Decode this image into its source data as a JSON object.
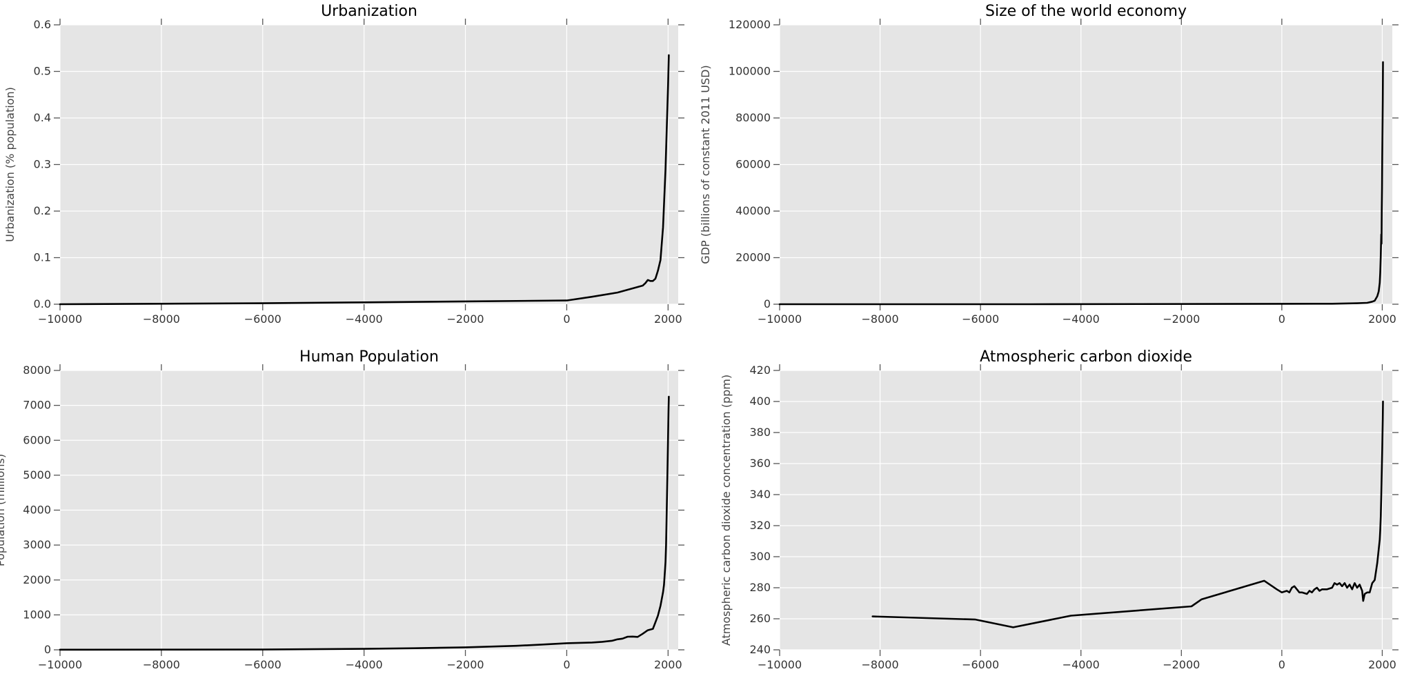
{
  "chart_data": [
    {
      "type": "line",
      "title": "Urbanization",
      "xlabel": "",
      "ylabel": "Urbanization (% population)",
      "xlim": [
        -10000,
        2200
      ],
      "ylim": [
        0,
        0.6
      ],
      "xticks": [
        -10000,
        -8000,
        -6000,
        -4000,
        -2000,
        0,
        2000
      ],
      "xtick_labels": [
        "−10000",
        "−8000",
        "−6000",
        "−4000",
        "−2000",
        "0",
        "2000"
      ],
      "yticks": [
        0,
        0.1,
        0.2,
        0.3,
        0.4,
        0.5,
        0.6
      ],
      "ytick_labels": [
        "0.0",
        "0.1",
        "0.2",
        "0.3",
        "0.4",
        "0.5",
        "0.6"
      ],
      "grid": true,
      "series": [
        {
          "x": [
            -10000,
            -8000,
            -6000,
            -4000,
            -2000,
            0,
            500,
            1000,
            1500,
            1550,
            1600,
            1650,
            1700,
            1750,
            1800,
            1850,
            1900,
            1950,
            2000,
            2015
          ],
          "y": [
            0,
            0.001,
            0.002,
            0.004,
            0.006,
            0.008,
            0.016,
            0.025,
            0.04,
            0.045,
            0.052,
            0.05,
            0.05,
            0.055,
            0.072,
            0.095,
            0.165,
            0.29,
            0.47,
            0.535
          ]
        }
      ]
    },
    {
      "type": "line",
      "title": "Size of the world economy",
      "xlabel": "",
      "ylabel": "GDP (billions of constant 2011 USD)",
      "xlim": [
        -10000,
        2200
      ],
      "ylim": [
        0,
        120000
      ],
      "xticks": [
        -10000,
        -8000,
        -6000,
        -4000,
        -2000,
        0,
        2000
      ],
      "xtick_labels": [
        "−10000",
        "−8000",
        "−6000",
        "−4000",
        "−2000",
        "0",
        "2000"
      ],
      "yticks": [
        0,
        20000,
        40000,
        60000,
        80000,
        100000,
        120000
      ],
      "ytick_labels": [
        "0",
        "20000",
        "40000",
        "60000",
        "80000",
        "100000",
        "120000"
      ],
      "grid": true,
      "series": [
        {
          "x": [
            -10000,
            -5000,
            0,
            1000,
            1500,
            1700,
            1800,
            1850,
            1900,
            1930,
            1950,
            1960,
            1970,
            1975,
            1980,
            1985,
            1990,
            1995,
            2000,
            2005,
            2010,
            2015
          ],
          "y": [
            2,
            10,
            180,
            210,
            420,
            600,
            1100,
            1500,
            3400,
            5500,
            9200,
            13500,
            21000,
            25000,
            30000,
            26000,
            40000,
            50000,
            63000,
            75000,
            88000,
            104000
          ]
        }
      ]
    },
    {
      "type": "line",
      "title": "Human Population",
      "xlabel": "",
      "ylabel": "Population (millions)",
      "xlim": [
        -10000,
        2200
      ],
      "ylim": [
        0,
        8000
      ],
      "xticks": [
        -10000,
        -8000,
        -6000,
        -4000,
        -2000,
        0,
        2000
      ],
      "xtick_labels": [
        "−10000",
        "−8000",
        "−6000",
        "−4000",
        "−2000",
        "0",
        "2000"
      ],
      "yticks": [
        0,
        1000,
        2000,
        3000,
        4000,
        5000,
        6000,
        7000,
        8000
      ],
      "ytick_labels": [
        "0",
        "1000",
        "2000",
        "3000",
        "4000",
        "5000",
        "6000",
        "7000",
        "8000"
      ],
      "grid": true,
      "series": [
        {
          "x": [
            -10000,
            -8000,
            -6000,
            -4000,
            -3000,
            -2000,
            -1000,
            -500,
            0,
            500,
            700,
            900,
            1000,
            1100,
            1200,
            1300,
            1400,
            1500,
            1600,
            1700,
            1750,
            1800,
            1850,
            1900,
            1920,
            1940,
            1950,
            1960,
            1970,
            1980,
            1990,
            2000,
            2010,
            2015
          ],
          "y": [
            4,
            5,
            7,
            28,
            45,
            72,
            115,
            150,
            190,
            210,
            230,
            260,
            300,
            320,
            375,
            380,
            370,
            460,
            560,
            600,
            790,
            980,
            1260,
            1650,
            1860,
            2300,
            2520,
            3000,
            3700,
            4430,
            5300,
            6100,
            6900,
            7250
          ]
        }
      ]
    },
    {
      "type": "line",
      "title": "Atmospheric carbon dioxide",
      "xlabel": "",
      "ylabel": "Atmospheric carbon dioxide concentration (ppm)",
      "xlim": [
        -10000,
        2200
      ],
      "ylim": [
        240,
        420
      ],
      "xticks": [
        -10000,
        -8000,
        -6000,
        -4000,
        -2000,
        0,
        2000
      ],
      "xtick_labels": [
        "−10000",
        "−8000",
        "−6000",
        "−4000",
        "−2000",
        "0",
        "2000"
      ],
      "yticks": [
        240,
        260,
        280,
        300,
        320,
        340,
        360,
        380,
        400,
        420
      ],
      "ytick_labels": [
        "240",
        "260",
        "280",
        "300",
        "320",
        "340",
        "360",
        "380",
        "400",
        "420"
      ],
      "grid": true,
      "series": [
        {
          "x": [
            -8150,
            -6100,
            -5350,
            -4200,
            -1800,
            -1600,
            -350,
            -100,
            0,
            100,
            150,
            200,
            250,
            300,
            350,
            400,
            500,
            550,
            600,
            650,
            700,
            750,
            800,
            900,
            1000,
            1050,
            1100,
            1150,
            1200,
            1250,
            1300,
            1350,
            1400,
            1450,
            1500,
            1550,
            1600,
            1620,
            1650,
            1700,
            1750,
            1800,
            1850,
            1900,
            1950,
            1960,
            1970,
            1980,
            1990,
            2000,
            2010,
            2015
          ],
          "y": [
            261.5,
            259.5,
            254.5,
            262,
            268,
            272.5,
            284.5,
            279,
            277,
            278,
            277,
            280,
            281,
            279,
            277,
            277,
            276,
            278,
            277,
            279,
            280,
            278,
            279,
            279,
            280,
            283,
            282,
            283,
            281,
            283,
            280,
            282,
            279,
            283,
            280,
            282,
            278,
            271.5,
            276,
            277,
            277,
            283,
            285,
            296,
            311,
            317,
            326,
            339,
            354,
            369,
            389,
            400
          ]
        }
      ]
    }
  ]
}
